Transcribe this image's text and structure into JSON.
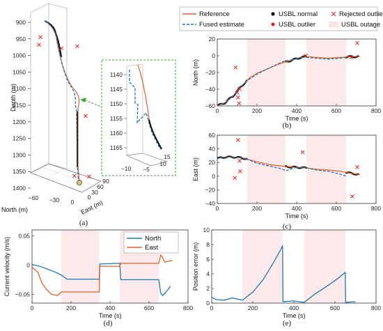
{
  "legend_top": {
    "entries": [
      "Reference",
      "USBL normal",
      "Rejected outlier",
      "Fused estimate",
      "USBL outlier",
      "USBL outage"
    ],
    "colors": {
      "reference": "#e0602a",
      "fused": "#1f77b4",
      "usbl": "#000000",
      "outlier": "#e01f1f",
      "outage": "#fbe3e3"
    }
  },
  "legend_velocity": {
    "entries": [
      "North",
      "East"
    ]
  },
  "captions": {
    "a": "(a)",
    "b": "(b)",
    "c": "(c)",
    "d": "(d)",
    "e": "(e)"
  },
  "chart_data": [
    {
      "id": "a",
      "type": "line3d",
      "zlabel": "Depth (m)",
      "xlabel": "North (m)",
      "ylabel": "East (m)",
      "ztick_labels": [
        "900",
        "950",
        "1000",
        "1050",
        "1100",
        "1150",
        "1200",
        "1250",
        "1300",
        "1350",
        "1400"
      ],
      "north_tick_labels": [
        "−60",
        "−30",
        "0"
      ],
      "east_tick_labels": [
        "0",
        "30",
        "60",
        "90"
      ],
      "inset": {
        "zticks": [
          "1140",
          "1145",
          "1150",
          "1155",
          "1160",
          "1165"
        ],
        "east_ticks": [
          "−10",
          "−5"
        ],
        "north_ticks": [
          "10",
          "15"
        ]
      }
    },
    {
      "id": "b",
      "type": "line",
      "xlabel": "Time (s)",
      "ylabel": "North (m)",
      "xlim": [
        0,
        800
      ],
      "ylim": [
        -60,
        20
      ],
      "xticks": [
        0,
        200,
        400,
        600,
        800
      ],
      "yticks": [
        -60,
        -40,
        -20,
        0,
        20
      ],
      "outages": [
        [
          150,
          345
        ],
        [
          450,
          650
        ]
      ],
      "reference": [
        [
          0,
          -60
        ],
        [
          40,
          -56
        ],
        [
          80,
          -48
        ],
        [
          120,
          -37
        ],
        [
          160,
          -27
        ],
        [
          200,
          -21
        ],
        [
          260,
          -15
        ],
        [
          320,
          -9
        ],
        [
          380,
          -5
        ],
        [
          420,
          -2
        ],
        [
          450,
          -1
        ],
        [
          500,
          -2
        ],
        [
          560,
          -3
        ],
        [
          620,
          -2
        ],
        [
          680,
          -1
        ],
        [
          720,
          -1
        ]
      ],
      "fused": [
        [
          0,
          -61
        ],
        [
          40,
          -56
        ],
        [
          80,
          -48
        ],
        [
          120,
          -37
        ],
        [
          150,
          -30
        ],
        [
          200,
          -22
        ],
        [
          260,
          -15
        ],
        [
          320,
          -8
        ],
        [
          345,
          -6
        ],
        [
          380,
          -5
        ],
        [
          420,
          -2
        ],
        [
          450,
          -2
        ],
        [
          500,
          -3
        ],
        [
          560,
          -4
        ],
        [
          620,
          -3
        ],
        [
          650,
          -2
        ]
      ],
      "usbl_normal_range": [
        [
          0,
          150
        ],
        [
          345,
          450
        ],
        [
          650,
          710
        ]
      ],
      "outliers": [
        [
          92,
          -14
        ],
        [
          100,
          -44
        ],
        [
          112,
          -40
        ],
        [
          104,
          -50
        ],
        [
          110,
          -57
        ],
        [
          445,
          0
        ],
        [
          675,
          -2
        ],
        [
          705,
          15
        ]
      ]
    },
    {
      "id": "c",
      "type": "line",
      "xlabel": "Time (s)",
      "ylabel": "East (m)",
      "xlim": [
        0,
        800
      ],
      "ylim": [
        -40,
        60
      ],
      "xticks": [
        0,
        200,
        400,
        600,
        800
      ],
      "yticks": [
        -40,
        -20,
        0,
        20,
        40,
        60
      ],
      "outages": [
        [
          150,
          345
        ],
        [
          450,
          650
        ]
      ],
      "reference": [
        [
          0,
          26
        ],
        [
          40,
          28
        ],
        [
          80,
          28
        ],
        [
          120,
          27
        ],
        [
          150,
          25
        ],
        [
          200,
          21
        ],
        [
          260,
          17
        ],
        [
          320,
          15
        ],
        [
          345,
          14
        ],
        [
          400,
          13
        ],
        [
          450,
          12
        ],
        [
          500,
          10
        ],
        [
          560,
          9
        ],
        [
          620,
          7
        ],
        [
          680,
          4
        ],
        [
          720,
          2
        ]
      ],
      "fused": [
        [
          0,
          26
        ],
        [
          40,
          28
        ],
        [
          80,
          28
        ],
        [
          120,
          27
        ],
        [
          150,
          25
        ],
        [
          200,
          19
        ],
        [
          260,
          15
        ],
        [
          320,
          11
        ],
        [
          345,
          8
        ],
        [
          400,
          13
        ],
        [
          450,
          12
        ],
        [
          500,
          9
        ],
        [
          560,
          7
        ],
        [
          620,
          3
        ],
        [
          650,
          0
        ]
      ],
      "usbl_normal_range": [
        [
          0,
          150
        ],
        [
          345,
          450
        ],
        [
          650,
          710
        ]
      ],
      "outliers": [
        [
          105,
          53
        ],
        [
          88,
          -3
        ],
        [
          112,
          22
        ],
        [
          115,
          7
        ],
        [
          430,
          35
        ],
        [
          680,
          -30
        ],
        [
          705,
          13
        ]
      ]
    },
    {
      "id": "d",
      "type": "line",
      "xlabel": "Time (s)",
      "ylabel": "Current velocity (m/s)",
      "xlim": [
        0,
        800
      ],
      "ylim": [
        -0.065,
        0.06
      ],
      "xticks": [
        0,
        200,
        400,
        600,
        800
      ],
      "yticks": [
        -0.05,
        0,
        0.05
      ],
      "outages": [
        [
          150,
          345
        ],
        [
          450,
          650
        ]
      ],
      "series": [
        {
          "name": "North",
          "color": "#1f77b4",
          "points": [
            [
              0,
              0.001
            ],
            [
              40,
              -0.002
            ],
            [
              80,
              -0.007
            ],
            [
              120,
              -0.012
            ],
            [
              150,
              -0.017
            ],
            [
              180,
              -0.024
            ],
            [
              345,
              -0.024
            ],
            [
              348,
              0.002
            ],
            [
              450,
              0.003
            ],
            [
              455,
              -0.025
            ],
            [
              650,
              -0.025
            ],
            [
              660,
              -0.048
            ],
            [
              670,
              -0.052
            ],
            [
              690,
              -0.045
            ],
            [
              710,
              -0.036
            ]
          ]
        },
        {
          "name": "East",
          "color": "#e0602a",
          "points": [
            [
              0,
              -0.004
            ],
            [
              30,
              -0.012
            ],
            [
              50,
              -0.03
            ],
            [
              70,
              -0.04
            ],
            [
              100,
              -0.05
            ],
            [
              130,
              -0.052
            ],
            [
              150,
              -0.046
            ],
            [
              345,
              -0.046
            ],
            [
              348,
              -0.002
            ],
            [
              450,
              -0.002
            ],
            [
              455,
              0.003
            ],
            [
              650,
              0.003
            ],
            [
              660,
              0.017
            ],
            [
              670,
              0.013
            ],
            [
              680,
              0.005
            ],
            [
              720,
              0.008
            ]
          ]
        }
      ]
    },
    {
      "id": "e",
      "type": "line",
      "xlabel": "Time (s)",
      "ylabel": "Position error (m)",
      "xlim": [
        0,
        800
      ],
      "ylim": [
        0,
        10
      ],
      "xticks": [
        0,
        200,
        400,
        600,
        800
      ],
      "yticks": [
        0,
        2,
        4,
        6,
        8,
        10
      ],
      "outages": [
        [
          150,
          345
        ],
        [
          450,
          650
        ]
      ],
      "series": [
        {
          "name": "Position error",
          "color": "#1f77b4",
          "points": [
            [
              0,
              0.8
            ],
            [
              20,
              0.5
            ],
            [
              60,
              0.4
            ],
            [
              100,
              0.7
            ],
            [
              150,
              0.4
            ],
            [
              200,
              1.5
            ],
            [
              250,
              3.2
            ],
            [
              300,
              5.5
            ],
            [
              345,
              7.8
            ],
            [
              347,
              0.2
            ],
            [
              400,
              0.3
            ],
            [
              450,
              0.1
            ],
            [
              500,
              1.2
            ],
            [
              560,
              2.3
            ],
            [
              620,
              3.5
            ],
            [
              650,
              4.2
            ],
            [
              652,
              0.1
            ],
            [
              700,
              0.2
            ]
          ]
        }
      ]
    }
  ]
}
